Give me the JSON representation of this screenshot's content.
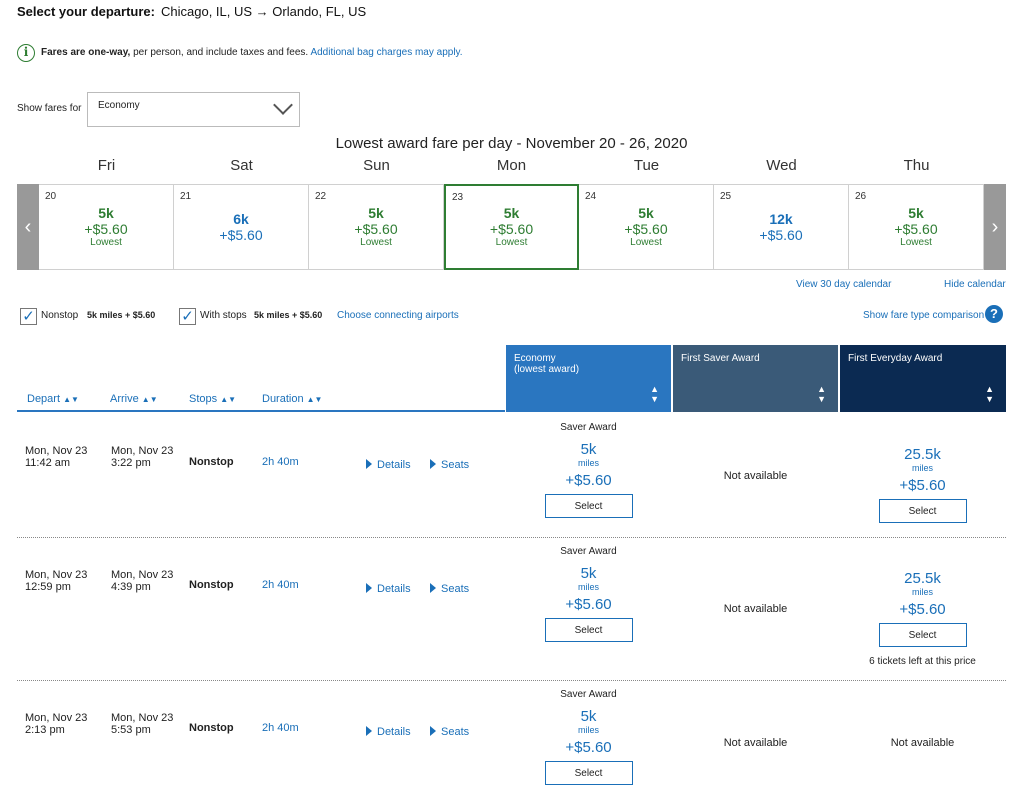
{
  "header": {
    "title_bold": "Select your departure:",
    "route": "Chicago, IL, US → Orlando, FL, US"
  },
  "notice": {
    "icon": "info-icon",
    "bold": "Fares are one-way,",
    "text": " per person, and include taxes and fees.",
    "link": "Additional bag charges may apply."
  },
  "fare_filter": {
    "label": "Show fares for",
    "value": "Economy"
  },
  "calendar": {
    "title": "Lowest award fare per day - November 20 - 26, 2020",
    "days": [
      {
        "dow": "Fri",
        "date": "20",
        "miles": "5k",
        "price": "+$5.60",
        "note": "Lowest",
        "color": "green"
      },
      {
        "dow": "Sat",
        "date": "21",
        "miles": "6k",
        "price": "+$5.60",
        "note": "",
        "color": "blue"
      },
      {
        "dow": "Sun",
        "date": "22",
        "miles": "5k",
        "price": "+$5.60",
        "note": "Lowest",
        "color": "green"
      },
      {
        "dow": "Mon",
        "date": "23",
        "miles": "5k",
        "price": "+$5.60",
        "note": "Lowest",
        "color": "green",
        "selected": true
      },
      {
        "dow": "Tue",
        "date": "24",
        "miles": "5k",
        "price": "+$5.60",
        "note": "Lowest",
        "color": "green"
      },
      {
        "dow": "Wed",
        "date": "25",
        "miles": "12k",
        "price": "+$5.60",
        "note": "",
        "color": "blue"
      },
      {
        "dow": "Thu",
        "date": "26",
        "miles": "5k",
        "price": "+$5.60",
        "note": "Lowest",
        "color": "green"
      }
    ],
    "view_30": "View 30 day calendar",
    "hide": "Hide calendar"
  },
  "filters": {
    "nonstop_label": "Nonstop",
    "nonstop_value": "5k miles + $5.60",
    "stops_label": "With stops",
    "stops_value": "5k miles + $5.60",
    "connecting": "Choose connecting airports",
    "compare": "Show fare type comparison"
  },
  "columns": {
    "depart": "Depart",
    "arrive": "Arrive",
    "stops": "Stops",
    "duration": "Duration",
    "economy_line1": "Economy",
    "economy_line2": "(lowest award)",
    "first_saver": "First Saver Award",
    "first_everyday": "First Everyday Award",
    "colors": {
      "economy": "#2a76c0",
      "first_saver": "#3a5a78",
      "first_everyday": "#0b2a52"
    }
  },
  "flights": [
    {
      "depart_date": "Mon, Nov 23",
      "depart_time": "11:42 am",
      "arrive_date": "Mon, Nov 23",
      "arrive_time": "3:22 pm",
      "stops": "Nonstop",
      "duration": "2h 40m",
      "details": "Details",
      "seats": "Seats",
      "economy": {
        "type": "Saver Award",
        "miles": "5k",
        "unit": "miles",
        "price": "+$5.60",
        "button": "Select"
      },
      "first_saver": {
        "text": "Not available"
      },
      "first_everyday": {
        "miles": "25.5k",
        "unit": "miles",
        "price": "+$5.60",
        "button": "Select",
        "note": ""
      }
    },
    {
      "depart_date": "Mon, Nov 23",
      "depart_time": "12:59 pm",
      "arrive_date": "Mon, Nov 23",
      "arrive_time": "4:39 pm",
      "stops": "Nonstop",
      "duration": "2h 40m",
      "details": "Details",
      "seats": "Seats",
      "economy": {
        "type": "Saver Award",
        "miles": "5k",
        "unit": "miles",
        "price": "+$5.60",
        "button": "Select"
      },
      "first_saver": {
        "text": "Not available"
      },
      "first_everyday": {
        "miles": "25.5k",
        "unit": "miles",
        "price": "+$5.60",
        "button": "Select",
        "note": "6 tickets left at this price"
      }
    },
    {
      "depart_date": "Mon, Nov 23",
      "depart_time": "2:13 pm",
      "arrive_date": "Mon, Nov 23",
      "arrive_time": "5:53 pm",
      "stops": "Nonstop",
      "duration": "2h 40m",
      "details": "Details",
      "seats": "Seats",
      "economy": {
        "type": "Saver Award",
        "miles": "5k",
        "unit": "miles",
        "price": "+$5.60",
        "button": "Select"
      },
      "first_saver": {
        "text": "Not available"
      },
      "first_everyday": {
        "text": "Not available"
      }
    }
  ]
}
